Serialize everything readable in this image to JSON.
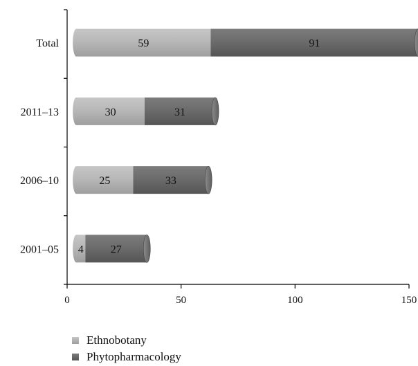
{
  "chart_data": {
    "type": "bar",
    "orientation": "horizontal",
    "stacked": true,
    "categories": [
      "Total",
      "2011–13",
      "2006–10",
      "2001–05"
    ],
    "series": [
      {
        "name": "Ethnobotany",
        "values": [
          59,
          30,
          25,
          4
        ],
        "color": "#b4b4b4"
      },
      {
        "name": "Phytopharmacology",
        "values": [
          91,
          31,
          33,
          27
        ],
        "color": "#6e6e6e"
      }
    ],
    "xlim": [
      0,
      150
    ],
    "xticks": [
      0,
      50,
      100,
      150
    ],
    "grid": false,
    "legend_position": "bottom-left",
    "data_labels": true
  }
}
